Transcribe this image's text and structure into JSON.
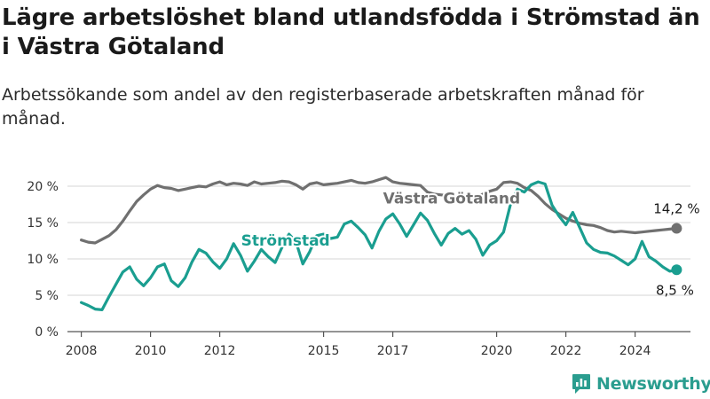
{
  "title": "Lägre arbetslöshet bland utlandsfödda i Strömstad än i Västra Götaland",
  "subtitle": "Arbetssökande som andel av den registerbaserade arbetskraften månad för månad.",
  "brand": {
    "name": "Newsworthy",
    "icon": "newsworthy-logo-icon",
    "color": "#2a9d8f"
  },
  "chart_data": {
    "type": "line",
    "title": "Lägre arbetslöshet bland utlandsfödda i Strömstad än i Västra Götaland",
    "subtitle": "Arbetssökande som andel av den registerbaserade arbetskraften månad för månad.",
    "xlabel": "",
    "ylabel": "",
    "xlim": [
      2007.6,
      2025.6
    ],
    "ylim": [
      0,
      20
    ],
    "y_ticks": [
      0,
      5,
      10,
      15,
      20
    ],
    "y_tick_labels": [
      "0 %",
      "5 %",
      "10 %",
      "15 %",
      "20 %"
    ],
    "x_ticks": [
      2008,
      2010,
      2012,
      2015,
      2017,
      2020,
      2022,
      2024
    ],
    "x_tick_labels": [
      "2008",
      "2010",
      "2012",
      "2015",
      "2017",
      "2020",
      "2022",
      "2024"
    ],
    "grid": "horizontal",
    "series": [
      {
        "name": "Västra Götaland",
        "color": "#707070",
        "end_label": "14,2 %",
        "points": [
          [
            2008.0,
            12.6
          ],
          [
            2008.2,
            12.3
          ],
          [
            2008.4,
            12.2
          ],
          [
            2008.6,
            12.7
          ],
          [
            2008.8,
            13.2
          ],
          [
            2009.0,
            14.0
          ],
          [
            2009.2,
            15.2
          ],
          [
            2009.4,
            16.6
          ],
          [
            2009.6,
            17.9
          ],
          [
            2009.8,
            18.8
          ],
          [
            2010.0,
            19.6
          ],
          [
            2010.2,
            20.1
          ],
          [
            2010.4,
            19.8
          ],
          [
            2010.6,
            19.7
          ],
          [
            2010.8,
            19.4
          ],
          [
            2011.0,
            19.6
          ],
          [
            2011.2,
            19.8
          ],
          [
            2011.4,
            20.0
          ],
          [
            2011.6,
            19.9
          ],
          [
            2011.8,
            20.3
          ],
          [
            2012.0,
            20.6
          ],
          [
            2012.2,
            20.2
          ],
          [
            2012.4,
            20.4
          ],
          [
            2012.6,
            20.3
          ],
          [
            2012.8,
            20.1
          ],
          [
            2013.0,
            20.6
          ],
          [
            2013.2,
            20.3
          ],
          [
            2013.4,
            20.4
          ],
          [
            2013.6,
            20.5
          ],
          [
            2013.8,
            20.7
          ],
          [
            2014.0,
            20.6
          ],
          [
            2014.2,
            20.2
          ],
          [
            2014.4,
            19.6
          ],
          [
            2014.6,
            20.3
          ],
          [
            2014.8,
            20.5
          ],
          [
            2015.0,
            20.2
          ],
          [
            2015.2,
            20.3
          ],
          [
            2015.4,
            20.4
          ],
          [
            2015.6,
            20.6
          ],
          [
            2015.8,
            20.8
          ],
          [
            2016.0,
            20.5
          ],
          [
            2016.2,
            20.4
          ],
          [
            2016.4,
            20.6
          ],
          [
            2016.6,
            20.9
          ],
          [
            2016.8,
            21.2
          ],
          [
            2017.0,
            20.6
          ],
          [
            2017.2,
            20.4
          ],
          [
            2017.4,
            20.3
          ],
          [
            2017.6,
            20.2
          ],
          [
            2017.8,
            20.1
          ],
          [
            2018.0,
            19.2
          ],
          [
            2018.2,
            18.9
          ],
          [
            2018.4,
            18.8
          ],
          [
            2018.6,
            18.7
          ],
          [
            2018.8,
            18.5
          ],
          [
            2019.0,
            18.3
          ],
          [
            2019.2,
            18.4
          ],
          [
            2019.4,
            18.5
          ],
          [
            2019.6,
            18.9
          ],
          [
            2019.8,
            19.3
          ],
          [
            2020.0,
            19.6
          ],
          [
            2020.2,
            20.5
          ],
          [
            2020.4,
            20.6
          ],
          [
            2020.6,
            20.4
          ],
          [
            2020.8,
            19.8
          ],
          [
            2021.0,
            19.4
          ],
          [
            2021.2,
            18.6
          ],
          [
            2021.4,
            17.6
          ],
          [
            2021.6,
            16.8
          ],
          [
            2021.8,
            16.2
          ],
          [
            2022.0,
            15.6
          ],
          [
            2022.2,
            15.2
          ],
          [
            2022.4,
            14.9
          ],
          [
            2022.6,
            14.7
          ],
          [
            2022.8,
            14.6
          ],
          [
            2023.0,
            14.3
          ],
          [
            2023.2,
            13.9
          ],
          [
            2023.4,
            13.7
          ],
          [
            2023.6,
            13.8
          ],
          [
            2023.8,
            13.7
          ],
          [
            2024.0,
            13.6
          ],
          [
            2024.2,
            13.7
          ],
          [
            2024.4,
            13.8
          ],
          [
            2024.6,
            13.9
          ],
          [
            2024.8,
            14.0
          ],
          [
            2025.0,
            14.1
          ],
          [
            2025.2,
            14.2
          ]
        ]
      },
      {
        "name": "Strömstad",
        "color": "#1a9e90",
        "end_label": "8,5 %",
        "points": [
          [
            2008.0,
            4.0
          ],
          [
            2008.2,
            3.6
          ],
          [
            2008.4,
            3.1
          ],
          [
            2008.6,
            3.0
          ],
          [
            2008.8,
            4.8
          ],
          [
            2009.0,
            6.5
          ],
          [
            2009.2,
            8.2
          ],
          [
            2009.4,
            8.9
          ],
          [
            2009.6,
            7.2
          ],
          [
            2009.8,
            6.3
          ],
          [
            2010.0,
            7.4
          ],
          [
            2010.2,
            8.9
          ],
          [
            2010.4,
            9.3
          ],
          [
            2010.6,
            7.0
          ],
          [
            2010.8,
            6.2
          ],
          [
            2011.0,
            7.4
          ],
          [
            2011.2,
            9.6
          ],
          [
            2011.4,
            11.3
          ],
          [
            2011.6,
            10.8
          ],
          [
            2011.8,
            9.6
          ],
          [
            2012.0,
            8.7
          ],
          [
            2012.2,
            10.0
          ],
          [
            2012.4,
            12.1
          ],
          [
            2012.6,
            10.5
          ],
          [
            2012.8,
            8.3
          ],
          [
            2013.0,
            9.7
          ],
          [
            2013.2,
            11.3
          ],
          [
            2013.4,
            10.3
          ],
          [
            2013.6,
            9.5
          ],
          [
            2013.8,
            11.6
          ],
          [
            2014.0,
            13.4
          ],
          [
            2014.2,
            12.4
          ],
          [
            2014.4,
            9.3
          ],
          [
            2014.6,
            11.0
          ],
          [
            2014.8,
            13.2
          ],
          [
            2015.0,
            13.4
          ],
          [
            2015.2,
            12.8
          ],
          [
            2015.4,
            13.0
          ],
          [
            2015.6,
            14.8
          ],
          [
            2015.8,
            15.2
          ],
          [
            2016.0,
            14.3
          ],
          [
            2016.2,
            13.3
          ],
          [
            2016.4,
            11.5
          ],
          [
            2016.6,
            13.8
          ],
          [
            2016.8,
            15.5
          ],
          [
            2017.0,
            16.2
          ],
          [
            2017.2,
            14.8
          ],
          [
            2017.4,
            13.1
          ],
          [
            2017.6,
            14.7
          ],
          [
            2017.8,
            16.3
          ],
          [
            2018.0,
            15.3
          ],
          [
            2018.2,
            13.5
          ],
          [
            2018.4,
            11.9
          ],
          [
            2018.6,
            13.5
          ],
          [
            2018.8,
            14.2
          ],
          [
            2019.0,
            13.4
          ],
          [
            2019.2,
            13.9
          ],
          [
            2019.4,
            12.7
          ],
          [
            2019.6,
            10.5
          ],
          [
            2019.8,
            11.9
          ],
          [
            2020.0,
            12.5
          ],
          [
            2020.2,
            13.7
          ],
          [
            2020.4,
            17.5
          ],
          [
            2020.6,
            19.6
          ],
          [
            2020.8,
            19.2
          ],
          [
            2021.0,
            20.2
          ],
          [
            2021.2,
            20.6
          ],
          [
            2021.4,
            20.3
          ],
          [
            2021.6,
            17.4
          ],
          [
            2021.8,
            15.9
          ],
          [
            2022.0,
            14.7
          ],
          [
            2022.2,
            16.4
          ],
          [
            2022.4,
            14.3
          ],
          [
            2022.6,
            12.2
          ],
          [
            2022.8,
            11.3
          ],
          [
            2023.0,
            10.9
          ],
          [
            2023.2,
            10.8
          ],
          [
            2023.4,
            10.4
          ],
          [
            2023.6,
            9.8
          ],
          [
            2023.8,
            9.2
          ],
          [
            2024.0,
            10.0
          ],
          [
            2024.2,
            12.4
          ],
          [
            2024.4,
            10.3
          ],
          [
            2024.6,
            9.7
          ],
          [
            2024.8,
            8.9
          ],
          [
            2025.0,
            8.3
          ],
          [
            2025.2,
            8.5
          ]
        ]
      }
    ]
  }
}
